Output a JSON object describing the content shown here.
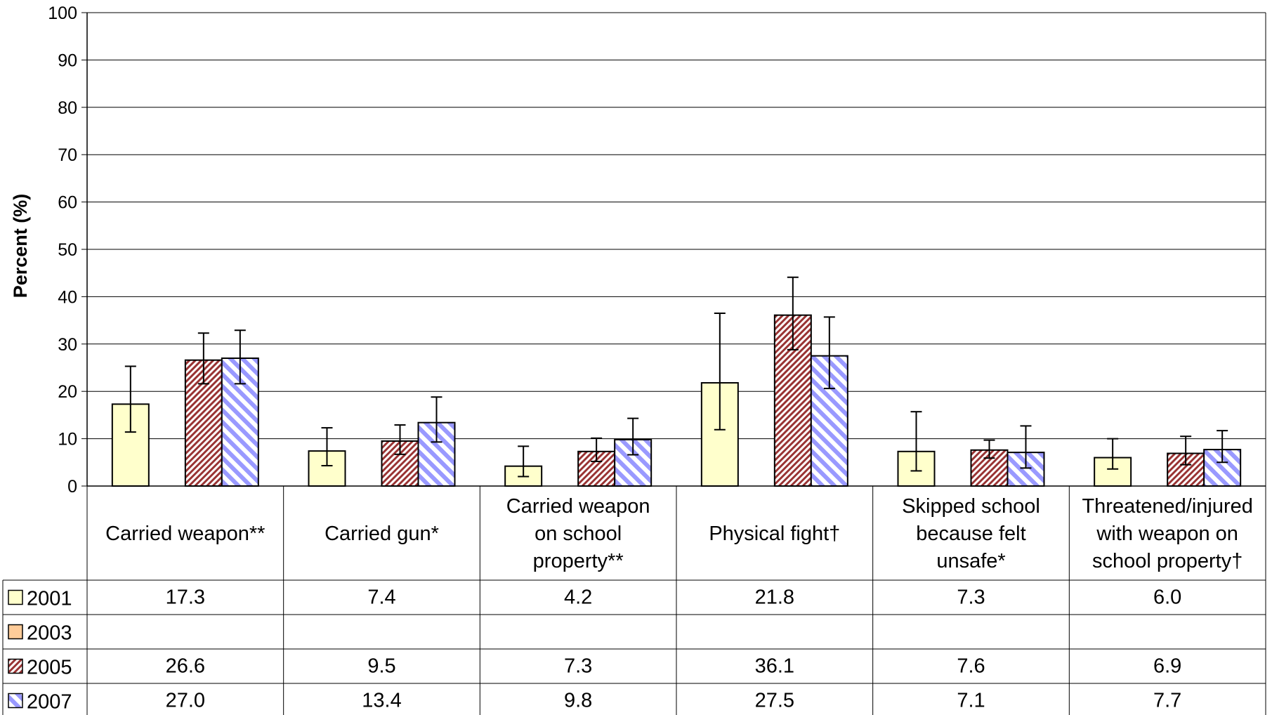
{
  "chart_data": {
    "type": "bar",
    "ylabel": "Percent (%)",
    "ylim": [
      0,
      100
    ],
    "yticks": [
      0,
      10,
      20,
      30,
      40,
      50,
      60,
      70,
      80,
      90,
      100
    ],
    "grid": true,
    "categories": [
      "Carried weapon**",
      "Carried gun*",
      "Carried weapon on school property**",
      "Physical fight†",
      "Skipped school because felt unsafe*",
      "Threatened/injured with weapon on school property†"
    ],
    "series": [
      {
        "name": "2001",
        "color": "#FFFFCC",
        "pattern": "solid",
        "values": [
          17.3,
          7.4,
          4.2,
          21.8,
          7.3,
          6.0
        ],
        "error_low": [
          11.4,
          4.3,
          2.0,
          11.9,
          3.2,
          3.6
        ],
        "error_high": [
          25.3,
          12.3,
          8.4,
          36.5,
          15.7,
          10.0
        ]
      },
      {
        "name": "2003",
        "color": "#FFCC99",
        "pattern": "solid",
        "values": [
          null,
          null,
          null,
          null,
          null,
          null
        ],
        "error_low": [
          null,
          null,
          null,
          null,
          null,
          null
        ],
        "error_high": [
          null,
          null,
          null,
          null,
          null,
          null
        ]
      },
      {
        "name": "2005",
        "color": "#993333",
        "pattern": "dense-diagonal",
        "values": [
          26.6,
          9.5,
          7.3,
          36.1,
          7.6,
          6.9
        ],
        "error_low": [
          21.6,
          6.7,
          5.2,
          28.8,
          5.9,
          4.5
        ],
        "error_high": [
          32.3,
          12.9,
          10.1,
          44.1,
          9.7,
          10.5
        ]
      },
      {
        "name": "2007",
        "color": "#9999FF",
        "pattern": "wide-diagonal",
        "values": [
          27.0,
          13.4,
          9.8,
          27.5,
          7.1,
          7.7
        ],
        "error_low": [
          21.6,
          9.3,
          6.6,
          20.6,
          3.8,
          5.0
        ],
        "error_high": [
          32.9,
          18.8,
          14.3,
          35.7,
          12.7,
          11.7
        ]
      }
    ],
    "table": {
      "rows": [
        {
          "label": "2001",
          "values": [
            "17.3",
            "7.4",
            "4.2",
            "21.8",
            "7.3",
            "6.0"
          ]
        },
        {
          "label": "2003",
          "values": [
            "",
            "",
            "",
            "",
            "",
            ""
          ]
        },
        {
          "label": "2005",
          "values": [
            "26.6",
            "9.5",
            "7.3",
            "36.1",
            "7.6",
            "6.9"
          ]
        },
        {
          "label": "2007",
          "values": [
            "27.0",
            "13.4",
            "9.8",
            "27.5",
            "7.1",
            "7.7"
          ]
        }
      ]
    }
  },
  "category_label_lines": [
    [
      "Carried weapon**"
    ],
    [
      "Carried gun*"
    ],
    [
      "Carried weapon",
      "on school",
      "property**"
    ],
    [
      "Physical fight†"
    ],
    [
      "Skipped school",
      "because felt",
      "unsafe*"
    ],
    [
      "Threatened/injured",
      "with weapon on",
      "school property†"
    ]
  ]
}
